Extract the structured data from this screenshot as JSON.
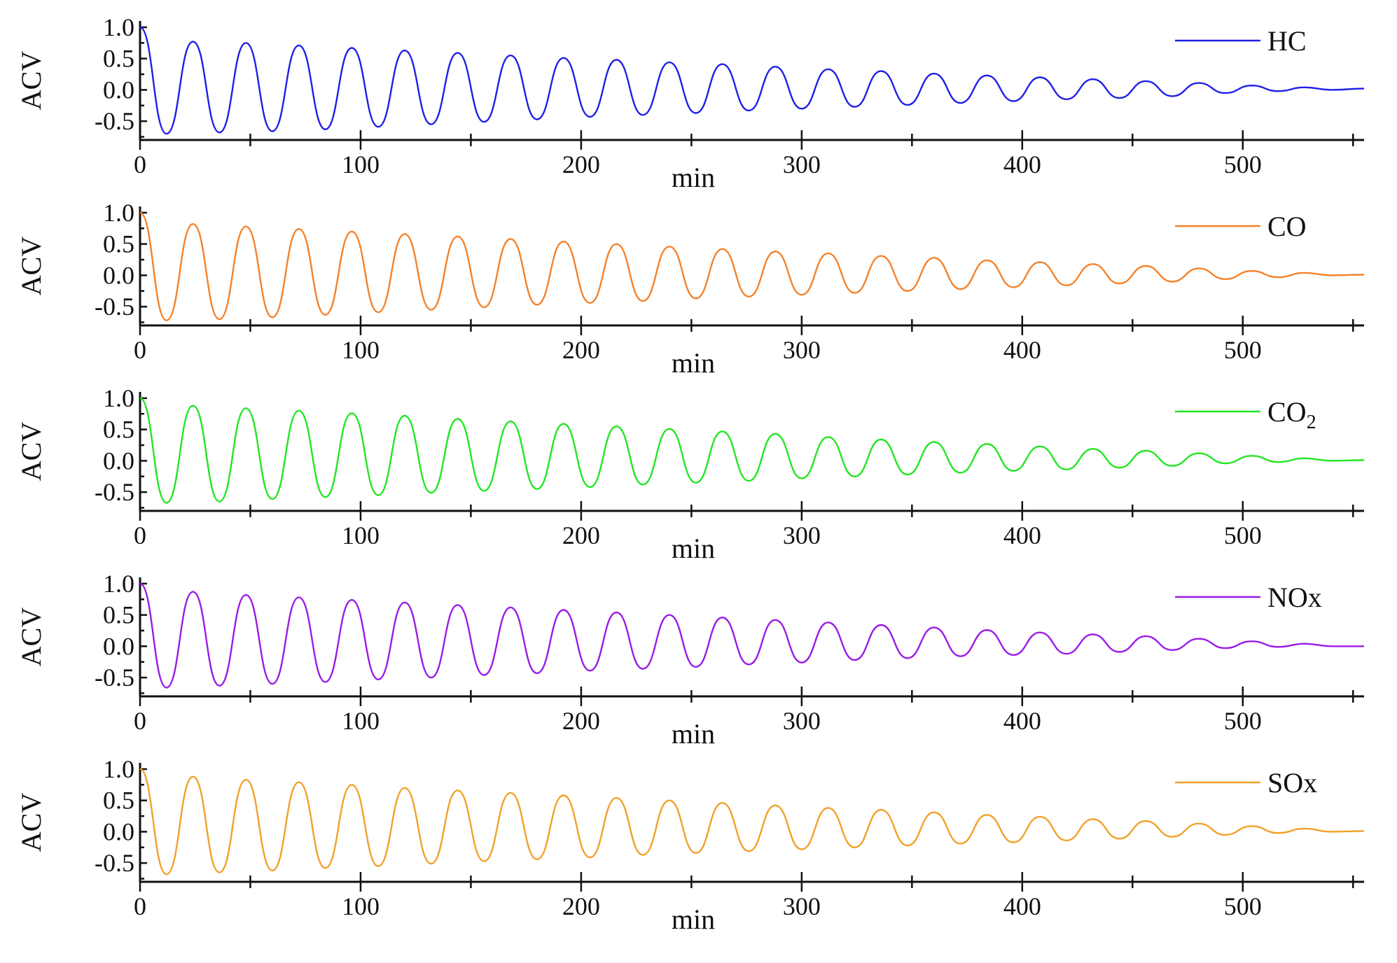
{
  "chart_data": [
    {
      "type": "line",
      "xlabel": "min",
      "ylabel": "ACV",
      "xlim": [
        0,
        555
      ],
      "ylim": [
        -0.8,
        1.1
      ],
      "xticks": [
        "0",
        "100",
        "200",
        "300",
        "400",
        "500"
      ],
      "yticks": [
        "1.0",
        "0.5",
        "0.0",
        "-0.5"
      ],
      "legend_position": "top-right",
      "series": [
        {
          "name": "HC",
          "color": "#1f1fe8",
          "x": [
            0,
            12,
            24,
            36,
            48,
            60,
            72,
            84,
            96,
            108,
            120,
            132,
            144,
            156,
            168,
            180,
            192,
            204,
            216,
            228,
            240,
            252,
            264,
            276,
            288,
            300,
            312,
            324,
            336,
            348,
            360,
            372,
            384,
            396,
            408,
            420,
            432,
            444,
            456,
            468,
            480,
            492,
            504,
            516,
            528,
            540,
            555
          ],
          "y": [
            1.0,
            -0.7,
            0.77,
            -0.68,
            0.75,
            -0.66,
            0.71,
            -0.63,
            0.67,
            -0.59,
            0.63,
            -0.55,
            0.59,
            -0.51,
            0.55,
            -0.47,
            0.51,
            -0.43,
            0.48,
            -0.4,
            0.44,
            -0.37,
            0.41,
            -0.33,
            0.37,
            -0.3,
            0.33,
            -0.27,
            0.3,
            -0.24,
            0.26,
            -0.21,
            0.23,
            -0.18,
            0.2,
            -0.15,
            0.17,
            -0.13,
            0.14,
            -0.1,
            0.11,
            -0.05,
            0.07,
            -0.02,
            0.04,
            0.0,
            0.02
          ]
        }
      ]
    },
    {
      "type": "line",
      "xlabel": "min",
      "ylabel": "ACV",
      "xlim": [
        0,
        555
      ],
      "ylim": [
        -0.8,
        1.1
      ],
      "xticks": [
        "0",
        "100",
        "200",
        "300",
        "400",
        "500"
      ],
      "yticks": [
        "1.0",
        "0.5",
        "0.0",
        "-0.5"
      ],
      "legend_position": "top-right",
      "series": [
        {
          "name": "CO",
          "color": "#f5822a",
          "x": [
            0,
            12,
            24,
            36,
            48,
            60,
            72,
            84,
            96,
            108,
            120,
            132,
            144,
            156,
            168,
            180,
            192,
            204,
            216,
            228,
            240,
            252,
            264,
            276,
            288,
            300,
            312,
            324,
            336,
            348,
            360,
            372,
            384,
            396,
            408,
            420,
            432,
            444,
            456,
            468,
            480,
            492,
            504,
            516,
            528,
            540,
            555
          ],
          "y": [
            1.0,
            -0.72,
            0.82,
            -0.7,
            0.78,
            -0.67,
            0.74,
            -0.63,
            0.7,
            -0.59,
            0.66,
            -0.55,
            0.62,
            -0.51,
            0.58,
            -0.47,
            0.54,
            -0.44,
            0.5,
            -0.41,
            0.46,
            -0.37,
            0.42,
            -0.34,
            0.38,
            -0.31,
            0.35,
            -0.28,
            0.31,
            -0.25,
            0.28,
            -0.22,
            0.24,
            -0.19,
            0.21,
            -0.16,
            0.18,
            -0.13,
            0.15,
            -0.1,
            0.11,
            -0.06,
            0.07,
            -0.03,
            0.04,
            0.0,
            0.01
          ]
        }
      ]
    },
    {
      "type": "line",
      "xlabel": "min",
      "ylabel": "ACV",
      "xlim": [
        0,
        555
      ],
      "ylim": [
        -0.8,
        1.1
      ],
      "xticks": [
        "0",
        "100",
        "200",
        "300",
        "400",
        "500"
      ],
      "yticks": [
        "1.0",
        "0.5",
        "0.0",
        "-0.5"
      ],
      "legend_position": "top-right",
      "series": [
        {
          "name": "CO",
          "name_subscript": "2",
          "color": "#22e622",
          "x": [
            0,
            12,
            24,
            36,
            48,
            60,
            72,
            84,
            96,
            108,
            120,
            132,
            144,
            156,
            168,
            180,
            192,
            204,
            216,
            228,
            240,
            252,
            264,
            276,
            288,
            300,
            312,
            324,
            336,
            348,
            360,
            372,
            384,
            396,
            408,
            420,
            432,
            444,
            456,
            468,
            480,
            492,
            504,
            516,
            528,
            540,
            555
          ],
          "y": [
            1.0,
            -0.67,
            0.88,
            -0.65,
            0.84,
            -0.61,
            0.8,
            -0.58,
            0.76,
            -0.55,
            0.72,
            -0.51,
            0.67,
            -0.48,
            0.63,
            -0.45,
            0.59,
            -0.42,
            0.55,
            -0.38,
            0.51,
            -0.35,
            0.47,
            -0.32,
            0.43,
            -0.28,
            0.38,
            -0.25,
            0.34,
            -0.22,
            0.3,
            -0.19,
            0.27,
            -0.16,
            0.23,
            -0.14,
            0.19,
            -0.11,
            0.16,
            -0.08,
            0.12,
            -0.04,
            0.08,
            -0.02,
            0.04,
            0.0,
            0.01
          ]
        }
      ]
    },
    {
      "type": "line",
      "xlabel": "min",
      "ylabel": "ACV",
      "xlim": [
        0,
        555
      ],
      "ylim": [
        -0.8,
        1.1
      ],
      "xticks": [
        "0",
        "100",
        "200",
        "300",
        "400",
        "500"
      ],
      "yticks": [
        "1.0",
        "0.5",
        "0.0",
        "-0.5"
      ],
      "legend_position": "top-right",
      "series": [
        {
          "name": "NOx",
          "color": "#9a1be6",
          "x": [
            0,
            12,
            24,
            36,
            48,
            60,
            72,
            84,
            96,
            108,
            120,
            132,
            144,
            156,
            168,
            180,
            192,
            204,
            216,
            228,
            240,
            252,
            264,
            276,
            288,
            300,
            312,
            324,
            336,
            348,
            360,
            372,
            384,
            396,
            408,
            420,
            432,
            444,
            456,
            468,
            480,
            492,
            504,
            516,
            528,
            540,
            555
          ],
          "y": [
            1.0,
            -0.66,
            0.87,
            -0.63,
            0.82,
            -0.6,
            0.78,
            -0.57,
            0.74,
            -0.53,
            0.7,
            -0.5,
            0.66,
            -0.46,
            0.62,
            -0.43,
            0.58,
            -0.39,
            0.54,
            -0.36,
            0.5,
            -0.33,
            0.46,
            -0.29,
            0.42,
            -0.26,
            0.38,
            -0.22,
            0.34,
            -0.19,
            0.3,
            -0.16,
            0.26,
            -0.14,
            0.22,
            -0.12,
            0.19,
            -0.09,
            0.16,
            -0.06,
            0.12,
            -0.03,
            0.08,
            -0.01,
            0.04,
            0.0,
            0.0
          ]
        }
      ]
    },
    {
      "type": "line",
      "xlabel": "min",
      "ylabel": "ACV",
      "xlim": [
        0,
        555
      ],
      "ylim": [
        -0.8,
        1.1
      ],
      "xticks": [
        "0",
        "100",
        "200",
        "300",
        "400",
        "500"
      ],
      "yticks": [
        "1.0",
        "0.5",
        "0.0",
        "-0.5"
      ],
      "legend_position": "top-right",
      "series": [
        {
          "name": "SOx",
          "color": "#f2a12b",
          "x": [
            0,
            12,
            24,
            36,
            48,
            60,
            72,
            84,
            96,
            108,
            120,
            132,
            144,
            156,
            168,
            180,
            192,
            204,
            216,
            228,
            240,
            252,
            264,
            276,
            288,
            300,
            312,
            324,
            336,
            348,
            360,
            372,
            384,
            396,
            408,
            420,
            432,
            444,
            456,
            468,
            480,
            492,
            504,
            516,
            528,
            540,
            555
          ],
          "y": [
            1.0,
            -0.68,
            0.88,
            -0.65,
            0.83,
            -0.62,
            0.79,
            -0.58,
            0.75,
            -0.55,
            0.7,
            -0.51,
            0.66,
            -0.47,
            0.62,
            -0.44,
            0.58,
            -0.41,
            0.54,
            -0.37,
            0.5,
            -0.34,
            0.46,
            -0.31,
            0.42,
            -0.28,
            0.38,
            -0.25,
            0.35,
            -0.22,
            0.31,
            -0.19,
            0.27,
            -0.17,
            0.24,
            -0.14,
            0.2,
            -0.11,
            0.17,
            -0.08,
            0.13,
            -0.05,
            0.09,
            -0.02,
            0.05,
            0.0,
            0.01
          ]
        }
      ]
    }
  ]
}
